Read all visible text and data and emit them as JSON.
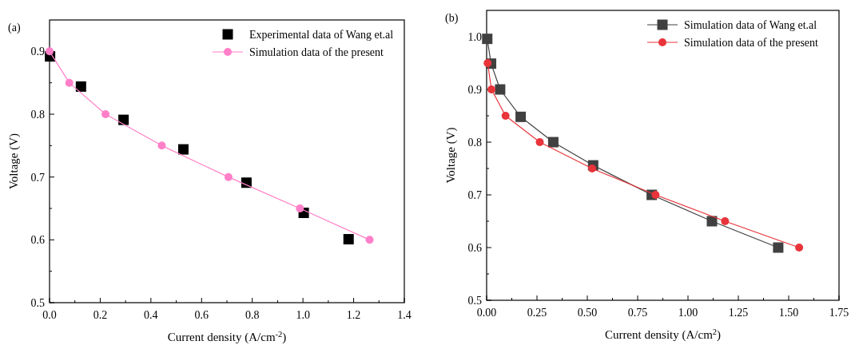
{
  "chart_data": [
    {
      "type": "scatter",
      "title": "(a)",
      "xlabel": "Current density (A/cm$^{-2}$)",
      "ylabel": "Voltage (V)",
      "xlim": [
        0,
        1.4
      ],
      "ylim": [
        0.5,
        0.95
      ],
      "xticks": [
        {
          "value": 0,
          "label": "0.0"
        },
        {
          "value": 0.1,
          "label": null
        },
        0.2,
        {
          "value": 0.3,
          "label": null
        },
        0.4,
        {
          "value": 0.5,
          "label": null
        },
        0.6,
        {
          "value": 0.7,
          "label": null
        },
        0.8,
        {
          "value": 0.9,
          "label": null
        },
        {
          "value": 1,
          "label": "1.0"
        },
        {
          "value": 1.1,
          "label": null
        },
        1.2,
        {
          "value": 1.3,
          "label": null
        },
        1.4
      ],
      "yticks": [
        0.5,
        {
          "value": 0.55,
          "label": null
        },
        0.6,
        {
          "value": 0.65,
          "label": null
        },
        0.7,
        {
          "value": 0.75,
          "label": null
        },
        0.8,
        {
          "value": 0.85,
          "label": null
        },
        0.9
      ],
      "legend": "top right",
      "grid": false,
      "series": [
        {
          "name": "Experimental data of Wang et.al",
          "marker": "square",
          "color": "#000000",
          "x": [
            0.002,
            0.124,
            0.292,
            0.528,
            0.777,
            1.003,
            1.18
          ],
          "values": [
            0.892,
            0.844,
            0.791,
            0.744,
            0.691,
            0.643,
            0.601
          ]
        },
        {
          "name": "Simulation data of the present",
          "type": "line",
          "marker": "circle",
          "color": "#ff80c8",
          "x": [
            0,
            0.078,
            0.221,
            0.443,
            0.706,
            0.988,
            1.263
          ],
          "values": [
            0.9,
            0.85,
            0.8,
            0.75,
            0.7,
            0.65,
            0.6
          ]
        }
      ]
    },
    {
      "type": "line",
      "title": "(b)",
      "xlabel": "Current density (A/cm$^{2}$)",
      "ylabel": "Voltage (V)",
      "xlim": [
        0,
        1.75
      ],
      "ylim": [
        0.5,
        1.05
      ],
      "xticks": [
        {
          "value": 0,
          "label": "0.00"
        },
        {
          "value": 0.125,
          "label": null
        },
        0.25,
        {
          "value": 0.375,
          "label": null
        },
        {
          "value": 0.5,
          "label": "0.50"
        },
        {
          "value": 0.625,
          "label": null
        },
        0.75,
        {
          "value": 0.875,
          "label": null
        },
        {
          "value": 1,
          "label": "1.00"
        },
        {
          "value": 1.125,
          "label": null
        },
        1.25,
        {
          "value": 1.375,
          "label": null
        },
        {
          "value": 1.5,
          "label": "1.50"
        },
        {
          "value": 1.625,
          "label": null
        },
        1.75
      ],
      "yticks": [
        0.5,
        {
          "value": 0.55,
          "label": null
        },
        0.6,
        {
          "value": 0.65,
          "label": null
        },
        0.7,
        {
          "value": 0.75,
          "label": null
        },
        0.8,
        {
          "value": 0.85,
          "label": null
        },
        0.9,
        {
          "value": 0.95,
          "label": null
        },
        {
          "value": 1,
          "label": "1.0"
        }
      ],
      "legend": "top right",
      "grid": false,
      "series": [
        {
          "name": "Simulation data of Wang et.al",
          "marker": "square",
          "color": "#404040",
          "x": [
            0.003,
            0.022,
            0.067,
            0.169,
            0.331,
            0.529,
            0.82,
            1.119,
            1.448
          ],
          "values": [
            0.996,
            0.949,
            0.9,
            0.848,
            0.8,
            0.756,
            0.7,
            0.65,
            0.6
          ]
        },
        {
          "name": "Simulation data of the present",
          "marker": "circle",
          "color": "#e8343a",
          "x": [
            0.005,
            0.024,
            0.094,
            0.264,
            0.524,
            0.839,
            1.184,
            1.552
          ],
          "values": [
            0.95,
            0.9,
            0.85,
            0.8,
            0.75,
            0.7,
            0.65,
            0.6
          ]
        }
      ]
    }
  ]
}
